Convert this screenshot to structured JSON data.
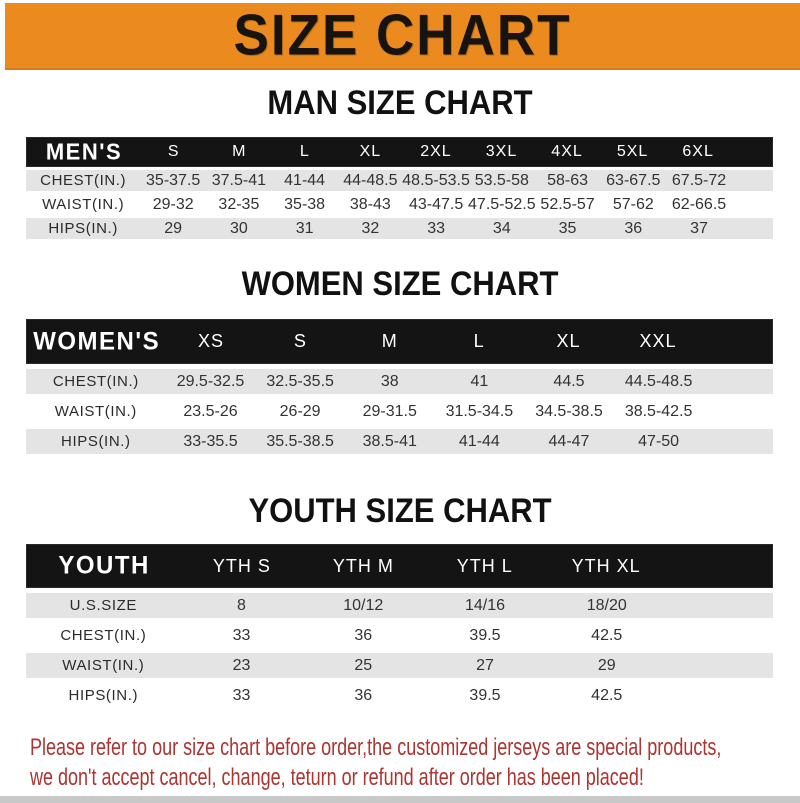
{
  "banner": {
    "title": "SIZE CHART"
  },
  "men": {
    "heading": "MAN SIZE CHART",
    "table": {
      "label": "MEN'S",
      "sizes": [
        "S",
        "M",
        "L",
        "XL",
        "2XL",
        "3XL",
        "4XL",
        "5XL",
        "6XL"
      ],
      "rows": [
        {
          "label": "CHEST(IN.)",
          "values": [
            "35-37.5",
            "37.5-41",
            "41-44",
            "44-48.5",
            "48.5-53.5",
            "53.5-58",
            "58-63",
            "63-67.5",
            "67.5-72"
          ]
        },
        {
          "label": "WAIST(IN.)",
          "values": [
            "29-32",
            "32-35",
            "35-38",
            "38-43",
            "43-47.5",
            "47.5-52.5",
            "52.5-57",
            "57-62",
            "62-66.5"
          ]
        },
        {
          "label": "HIPS(IN.)",
          "values": [
            "29",
            "30",
            "31",
            "32",
            "33",
            "34",
            "35",
            "36",
            "37"
          ]
        }
      ]
    }
  },
  "women": {
    "heading": "WOMEN SIZE CHART",
    "table": {
      "label": "WOMEN'S",
      "sizes": [
        "XS",
        "S",
        "M",
        "L",
        "XL",
        "XXL"
      ],
      "rows": [
        {
          "label": "CHEST(IN.)",
          "values": [
            "29.5-32.5",
            "32.5-35.5",
            "38",
            "41",
            "44.5",
            "44.5-48.5"
          ]
        },
        {
          "label": "WAIST(IN.)",
          "values": [
            "23.5-26",
            "26-29",
            "29-31.5",
            "31.5-34.5",
            "34.5-38.5",
            "38.5-42.5"
          ]
        },
        {
          "label": "HIPS(IN.)",
          "values": [
            "33-35.5",
            "35.5-38.5",
            "38.5-41",
            "41-44",
            "44-47",
            "47-50"
          ]
        }
      ]
    }
  },
  "youth": {
    "heading": "YOUTH SIZE CHART",
    "table": {
      "label": "YOUTH",
      "sizes": [
        "YTH S",
        "YTH M",
        "YTH L",
        "YTH XL"
      ],
      "rows": [
        {
          "label": "U.S.SIZE",
          "values": [
            "8",
            "10/12",
            "14/16",
            "18/20"
          ]
        },
        {
          "label": "CHEST(IN.)",
          "values": [
            "33",
            "36",
            "39.5",
            "42.5"
          ]
        },
        {
          "label": "WAIST(IN.)",
          "values": [
            "23",
            "25",
            "27",
            "29"
          ]
        },
        {
          "label": "HIPS(IN.)",
          "values": [
            "33",
            "36",
            "39.5",
            "42.5"
          ]
        }
      ]
    }
  },
  "footer": {
    "line1": "Please refer to our size chart before order,the customized jerseys are special products,",
    "line2": "we don't accept cancel, change, teturn or refund after order has been placed!"
  },
  "colors": {
    "banner_orange": "#EB8B1F",
    "header_black": "#141414",
    "row_gray": "#E4E4E4",
    "note_red": "#AC3531",
    "strip_gray": "#C8C8C8"
  }
}
